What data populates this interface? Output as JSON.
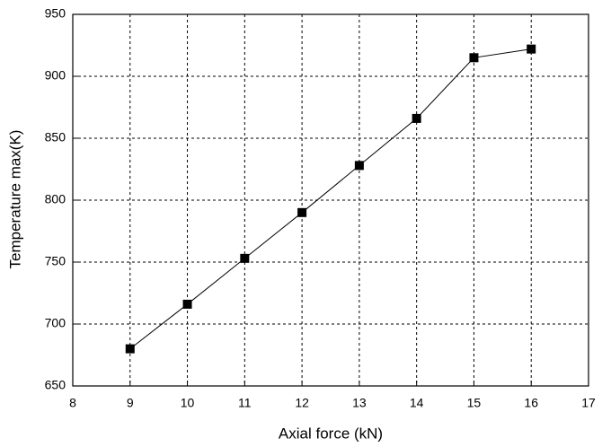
{
  "chart_data": {
    "type": "line",
    "x_label": "Axial force (kN)",
    "y_label": "Temperature max(K)",
    "x": [
      9,
      10,
      11,
      12,
      13,
      14,
      15,
      16
    ],
    "series": [
      {
        "color": "#000000",
        "values": [
          680,
          716,
          753,
          790,
          828,
          866,
          915,
          922
        ]
      }
    ],
    "xlim": [
      8,
      17
    ],
    "xticks": [
      8,
      9,
      10,
      11,
      12,
      13,
      14,
      15,
      16,
      17
    ],
    "ylim": [
      650,
      950
    ],
    "yticks": [
      650,
      700,
      750,
      800,
      850,
      900,
      950
    ],
    "grid": true
  }
}
